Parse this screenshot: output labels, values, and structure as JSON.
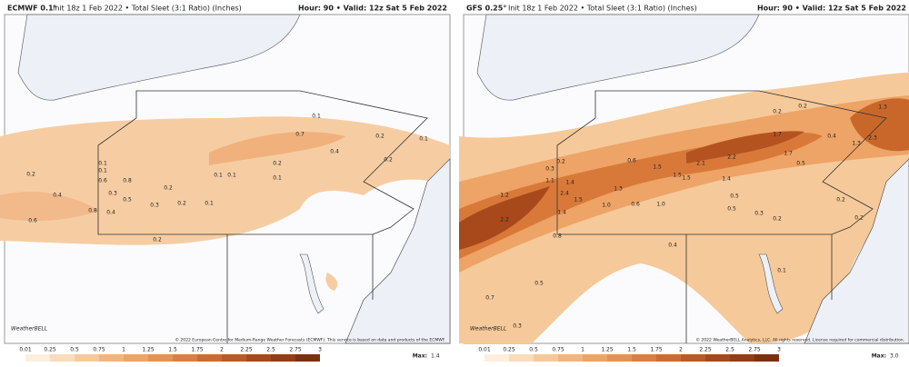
{
  "panels": [
    {
      "model": "ECMWF 0.1°",
      "init": "Init 18z 1 Feb 2022 • Total Sleet (3:1 Ratio) (Inches)",
      "valid": "Hour: 90 • Valid: 12z Sat 5 Feb 2022",
      "labels": [
        "0.1",
        "0.7",
        "0.2",
        "0.1",
        "0.4",
        "0.2",
        "0.2",
        "0.1",
        "0.1",
        "0.6",
        "0.8",
        "0.4",
        "0.3",
        "0.2",
        "0.1",
        "0.5",
        "0.2",
        "0.3",
        "0.1",
        "0.4",
        "0.8",
        "0.6",
        "0.2",
        "0.1",
        "0.2",
        "0.1"
      ],
      "logo": "WeatherBELL",
      "copyright": "© 2022 European Centre for Medium-Range Weather Forecasts (ECMWF). This service is based on data and products of the ECMWF.",
      "max_label": "Max:",
      "max": "1.4"
    },
    {
      "model": "GFS 0.25°",
      "init": "Init 18z 1 Feb 2022 • Total Sleet (3:1 Ratio) (Inches)",
      "valid": "Hour: 90 • Valid: 12z Sat 5 Feb 2022",
      "labels": [
        "1.3",
        "2.3",
        "1.3",
        "0.2",
        "0.2",
        "1.7",
        "0.4",
        "2.2",
        "1.7",
        "0.5",
        "0.6",
        "2.1",
        "1.5",
        "1.5",
        "1.5",
        "1.4",
        "0.2",
        "0.3",
        "1.1",
        "1.4",
        "1.3",
        "2.4",
        "1.5",
        "1.0",
        "0.6",
        "1.0",
        "1.2",
        "1.4",
        "2.2",
        "0.8",
        "0.5",
        "0.5",
        "0.3",
        "0.2",
        "0.7",
        "0.5",
        "0.3",
        "0.1",
        "0.4",
        "0.2",
        "0.2"
      ],
      "logo": "WeatherBELL",
      "copyright": "© 2022 WeatherBELL Analytics, LLC. All rights reserved. License required for commercial distribution.",
      "max_label": "Max:",
      "max": "3.0"
    }
  ],
  "colorbar": {
    "ticks": [
      "0.01",
      "0.25",
      "0.5",
      "0.75",
      "1",
      "1.25",
      "1.5",
      "1.75",
      "2",
      "2.25",
      "2.5",
      "2.75",
      "3"
    ]
  }
}
